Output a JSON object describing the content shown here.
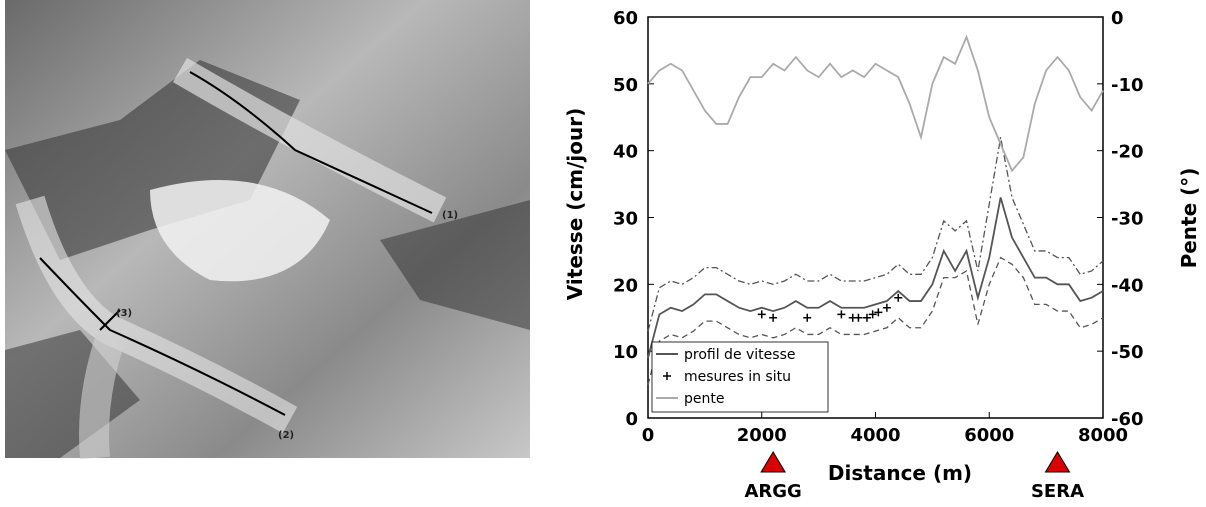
{
  "image": {
    "labels": [
      "(1)",
      "(2)",
      "(3)"
    ]
  },
  "chart_data": {
    "type": "line",
    "xlabel": "Distance (m)",
    "ylabel": "Vitesse (cm/jour)",
    "y2label": "Pente (°)",
    "xlim": [
      0,
      8000
    ],
    "xticks": [
      0,
      2000,
      4000,
      6000,
      8000
    ],
    "ylim": [
      0,
      60
    ],
    "yticks": [
      0,
      10,
      20,
      30,
      40,
      50,
      60
    ],
    "y2lim": [
      -60,
      0
    ],
    "y2ticks": [
      -60,
      -50,
      -40,
      -30,
      -20,
      -10,
      0
    ],
    "legend": "lower left",
    "x": [
      0,
      200,
      400,
      600,
      800,
      1000,
      1200,
      1400,
      1600,
      1800,
      2000,
      2200,
      2400,
      2600,
      2800,
      3000,
      3200,
      3400,
      3600,
      3800,
      4000,
      4200,
      4400,
      4600,
      4800,
      5000,
      5200,
      5400,
      5600,
      5800,
      6000,
      6200,
      6400,
      6600,
      6800,
      7000,
      7200,
      7400,
      7600,
      7800,
      8000
    ],
    "series": [
      {
        "name": "profil de vitesse",
        "color": "#555555",
        "dash": "solid",
        "values": [
          9,
          15.5,
          16.5,
          16,
          17,
          18.5,
          18.5,
          17.5,
          16.5,
          16,
          16.5,
          16,
          16.5,
          17.5,
          16.5,
          16.5,
          17.5,
          16.5,
          16.5,
          16.5,
          17,
          17.5,
          19,
          17.5,
          17.5,
          20,
          25,
          22,
          25,
          18,
          24,
          33,
          27,
          24,
          21,
          21,
          20,
          20,
          17.5,
          18,
          19
        ]
      },
      {
        "color": "#555555",
        "dash": "dashdot",
        "values": [
          13,
          19.5,
          20.5,
          20,
          21,
          22.5,
          22.5,
          21.5,
          20.5,
          20,
          20.5,
          20,
          20.5,
          21.5,
          20.5,
          20.5,
          21.5,
          20.5,
          20.5,
          20.5,
          21,
          21.5,
          23,
          21.5,
          21.5,
          24,
          29.5,
          28,
          29.5,
          22,
          32,
          42,
          33,
          29,
          25,
          25,
          24,
          24,
          21.5,
          22,
          23.5
        ]
      },
      {
        "color": "#555555",
        "dash": "dashed",
        "values": [
          5,
          11.5,
          12.5,
          12,
          13,
          14.5,
          14.5,
          13.5,
          12.5,
          12,
          12.5,
          12,
          12.5,
          13.5,
          12.5,
          12.5,
          13.5,
          12.5,
          12.5,
          12.5,
          13,
          13.5,
          15,
          13.5,
          13.5,
          16,
          21,
          21,
          22,
          14,
          20,
          24,
          23,
          21,
          17,
          17,
          16,
          16,
          13.5,
          14,
          15
        ]
      },
      {
        "name": "pente",
        "color": "#aaaaaa",
        "dash": "solid",
        "axis": "y2",
        "values": [
          -10,
          -8,
          -7,
          -8,
          -11,
          -14,
          -16,
          -16,
          -12,
          -9,
          -9,
          -7,
          -8,
          -6,
          -8,
          -9,
          -7,
          -9,
          -8,
          -9,
          -7,
          -8,
          -9,
          -13,
          -18,
          -10,
          -6,
          -7,
          -3,
          -8,
          -15,
          -19,
          -23,
          -21,
          -13,
          -8,
          -6,
          -8,
          -12,
          -14,
          -11
        ]
      }
    ],
    "points": {
      "name": "mesures in situ",
      "color": "#000000",
      "x": [
        2000,
        2200,
        2800,
        3400,
        3600,
        3700,
        3850,
        3950,
        4050,
        4200,
        4400
      ],
      "values": [
        15.5,
        15,
        15,
        15.5,
        15,
        15,
        15,
        15.5,
        15.8,
        16.5,
        18
      ]
    },
    "annotations": [
      {
        "text": "ARGG",
        "x": 2200,
        "color": "#dd0000"
      },
      {
        "text": "SERA",
        "x": 7200,
        "color": "#dd0000"
      }
    ]
  }
}
